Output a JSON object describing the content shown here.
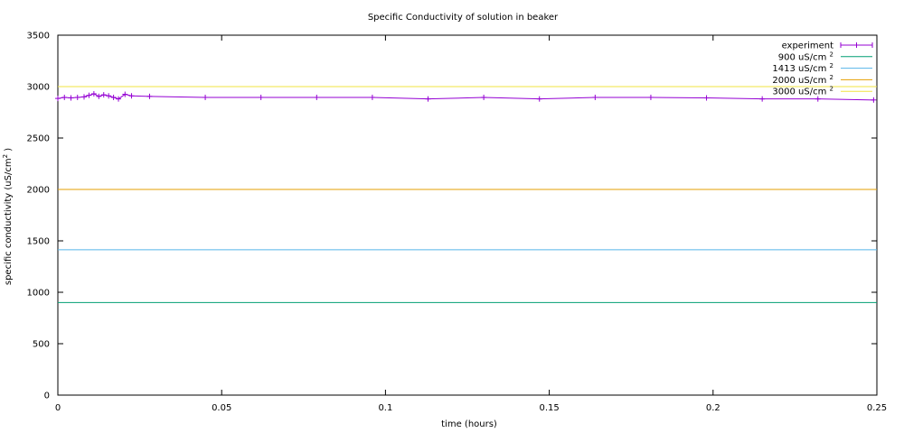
{
  "chart_data": {
    "type": "line",
    "title": "Specific Conductivity of solution in beaker",
    "xlabel": "time (hours)",
    "ylabel": "specific conductivity (uS/cm",
    "ylabel_sup": "2",
    "ylabel_suffix": " )",
    "xlim": [
      0,
      0.25
    ],
    "ylim": [
      0,
      3500
    ],
    "x_ticks": [
      0,
      0.05,
      0.1,
      0.15,
      0.2,
      0.25
    ],
    "x_tick_labels": [
      "0",
      "0.05",
      "0.1",
      "0.15",
      "0.2",
      "0.25"
    ],
    "y_ticks": [
      0,
      500,
      1000,
      1500,
      2000,
      2500,
      3000,
      3500
    ],
    "y_tick_labels": [
      "0",
      "500",
      "1000",
      "1500",
      "2000",
      "2500",
      "3000",
      "3500"
    ],
    "grid": false,
    "legend_position": "top-right",
    "series": [
      {
        "name": "experiment",
        "color": "#9400d3",
        "markers": true,
        "x": [
          0,
          0.002,
          0.004,
          0.006,
          0.008,
          0.0095,
          0.011,
          0.0125,
          0.014,
          0.0155,
          0.017,
          0.0185,
          0.0205,
          0.0225,
          0.028,
          0.045,
          0.062,
          0.079,
          0.096,
          0.113,
          0.13,
          0.147,
          0.164,
          0.181,
          0.198,
          0.215,
          0.232,
          0.249
        ],
        "y": [
          2885,
          2895,
          2890,
          2895,
          2900,
          2915,
          2930,
          2905,
          2920,
          2910,
          2895,
          2880,
          2925,
          2910,
          2905,
          2895,
          2895,
          2895,
          2895,
          2880,
          2895,
          2880,
          2895,
          2895,
          2890,
          2880,
          2880,
          2870
        ]
      },
      {
        "name": "900 uS/cm",
        "name_sup": "2",
        "color": "#009e73",
        "constant": 900
      },
      {
        "name": "1413 uS/cm",
        "name_sup": "2",
        "color": "#56b4e9",
        "constant": 1413
      },
      {
        "name": "2000 uS/cm",
        "name_sup": "2",
        "color": "#e69f00",
        "constant": 2000
      },
      {
        "name": "3000 uS/cm",
        "name_sup": "2",
        "color": "#f0e442",
        "constant": 3000
      }
    ]
  }
}
